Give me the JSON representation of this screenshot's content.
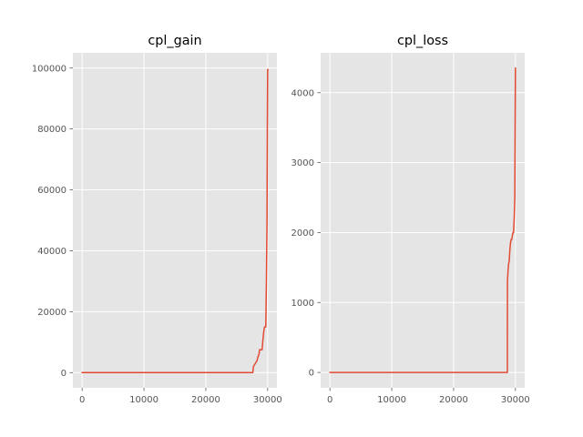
{
  "chart_data": [
    {
      "type": "line",
      "title": "cpl_gain",
      "xlabel": "",
      "ylabel": "",
      "xlim": [
        -1500,
        31500
      ],
      "ylim": [
        -5000,
        105000
      ],
      "xticks": [
        0,
        10000,
        20000,
        30000
      ],
      "xtick_labels": [
        "0",
        "10000",
        "20000",
        "30000"
      ],
      "yticks": [
        0,
        20000,
        40000,
        60000,
        80000,
        100000
      ],
      "ytick_labels": [
        "0",
        "20000",
        "40000",
        "60000",
        "80000",
        "100000"
      ],
      "grid": true,
      "color": "#e24a33",
      "series": [
        {
          "x": [
            0,
            27600,
            27700,
            28000,
            28300,
            28400,
            28600,
            28700,
            29100,
            29200,
            29400,
            29500,
            29700,
            29800,
            29900,
            29950,
            30000,
            30050
          ],
          "y": [
            0,
            0,
            2000,
            3000,
            4000,
            5000,
            6000,
            7500,
            7500,
            10000,
            14000,
            15000,
            15000,
            30000,
            50000,
            80000,
            99500,
            99500
          ]
        }
      ]
    },
    {
      "type": "line",
      "title": "cpl_loss",
      "xlabel": "",
      "ylabel": "",
      "xlim": [
        -1500,
        31500
      ],
      "ylim": [
        -220,
        4570
      ],
      "xticks": [
        0,
        10000,
        20000,
        30000
      ],
      "xtick_labels": [
        "0",
        "10000",
        "20000",
        "30000"
      ],
      "yticks": [
        0,
        1000,
        2000,
        3000,
        4000
      ],
      "ytick_labels": [
        "0",
        "1000",
        "2000",
        "3000",
        "4000"
      ],
      "grid": true,
      "color": "#e24a33",
      "series": [
        {
          "x": [
            0,
            28700,
            28710,
            28800,
            28900,
            29000,
            29100,
            29200,
            29300,
            29400,
            29500,
            29600,
            29700,
            29800,
            29900,
            29950,
            30000
          ],
          "y": [
            0,
            0,
            1300,
            1450,
            1550,
            1600,
            1750,
            1850,
            1900,
            1900,
            1950,
            2000,
            2000,
            2200,
            2500,
            3500,
            4350
          ]
        }
      ]
    }
  ]
}
